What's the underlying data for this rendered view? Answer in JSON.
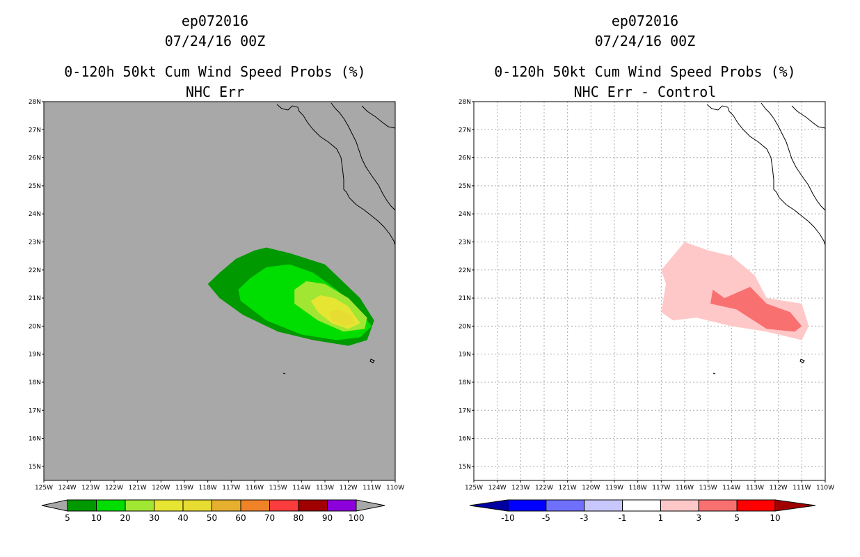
{
  "chart_data": [
    {
      "type": "contour-map",
      "title_lines": [
        "ep072016",
        "07/24/16 00Z",
        "0-120h 50kt Cum Wind Speed Probs (%)",
        "NHC Err"
      ],
      "x_ticks": [
        "125W",
        "124W",
        "123W",
        "122W",
        "121W",
        "120W",
        "119W",
        "118W",
        "117W",
        "116W",
        "115W",
        "114W",
        "113W",
        "112W",
        "111W",
        "110W"
      ],
      "y_ticks": [
        "28N",
        "27N",
        "26N",
        "25N",
        "24N",
        "23N",
        "22N",
        "21N",
        "20N",
        "19N",
        "18N",
        "17N",
        "16N",
        "15N"
      ],
      "lon_range": [
        -125,
        -110
      ],
      "lat_range": [
        14.5,
        28
      ],
      "background_color": "#a8a8a8",
      "grid": false,
      "colorbar": {
        "labels": [
          "5",
          "10",
          "20",
          "30",
          "40",
          "50",
          "60",
          "70",
          "80",
          "90",
          "100"
        ],
        "colors": [
          "#009900",
          "#00dd00",
          "#a0e632",
          "#e6e632",
          "#e6dc32",
          "#e6af2d",
          "#f08228",
          "#fa3c3c",
          "#a00000",
          "#8c00dc"
        ],
        "end_color": "#a8a8a8"
      },
      "contours": [
        {
          "level": "5-10",
          "color": "#009900",
          "points": [
            [
              -118.0,
              21.5
            ],
            [
              -117.5,
              21.9
            ],
            [
              -116.8,
              22.4
            ],
            [
              -116.0,
              22.7
            ],
            [
              -115.5,
              22.8
            ],
            [
              -114.5,
              22.6
            ],
            [
              -113.0,
              22.2
            ],
            [
              -112.5,
              21.8
            ],
            [
              -111.5,
              21.0
            ],
            [
              -110.9,
              20.2
            ],
            [
              -111.2,
              19.5
            ],
            [
              -112.0,
              19.3
            ],
            [
              -113.5,
              19.5
            ],
            [
              -115.0,
              19.8
            ],
            [
              -116.5,
              20.4
            ],
            [
              -117.5,
              21.0
            ]
          ]
        },
        {
          "level": "10-20",
          "color": "#00dd00",
          "points": [
            [
              -116.7,
              21.3
            ],
            [
              -116.2,
              21.7
            ],
            [
              -115.5,
              22.1
            ],
            [
              -114.5,
              22.2
            ],
            [
              -113.5,
              21.9
            ],
            [
              -112.5,
              21.3
            ],
            [
              -111.6,
              20.6
            ],
            [
              -111.0,
              20.0
            ],
            [
              -111.5,
              19.6
            ],
            [
              -112.5,
              19.5
            ],
            [
              -114.0,
              19.7
            ],
            [
              -115.5,
              20.2
            ],
            [
              -116.6,
              20.9
            ]
          ]
        },
        {
          "level": "20-30",
          "color": "#a0e632",
          "points": [
            [
              -114.3,
              21.3
            ],
            [
              -113.8,
              21.6
            ],
            [
              -113.0,
              21.5
            ],
            [
              -112.0,
              21.0
            ],
            [
              -111.2,
              20.3
            ],
            [
              -111.3,
              19.9
            ],
            [
              -112.2,
              19.8
            ],
            [
              -113.3,
              20.2
            ],
            [
              -114.3,
              20.8
            ]
          ]
        },
        {
          "level": "30-40",
          "color": "#e6e632",
          "points": [
            [
              -113.6,
              20.9
            ],
            [
              -113.2,
              21.1
            ],
            [
              -112.6,
              21.0
            ],
            [
              -112.0,
              20.7
            ],
            [
              -111.5,
              20.1
            ],
            [
              -112.0,
              19.9
            ],
            [
              -112.7,
              20.1
            ],
            [
              -113.3,
              20.5
            ]
          ]
        },
        {
          "level": "40-50",
          "color": "#e6dc32",
          "points": [
            [
              -112.8,
              20.5
            ],
            [
              -112.4,
              20.6
            ],
            [
              -111.9,
              20.4
            ],
            [
              -111.7,
              20.1
            ],
            [
              -112.2,
              20.0
            ],
            [
              -112.7,
              20.2
            ]
          ]
        }
      ]
    },
    {
      "type": "contour-map",
      "title_lines": [
        "ep072016",
        "07/24/16 00Z",
        "0-120h 50kt Cum Wind Speed Probs (%)",
        "NHC Err - Control"
      ],
      "x_ticks": [
        "125W",
        "124W",
        "123W",
        "122W",
        "121W",
        "120W",
        "119W",
        "118W",
        "117W",
        "116W",
        "115W",
        "114W",
        "113W",
        "112W",
        "111W",
        "110W"
      ],
      "y_ticks": [
        "28N",
        "27N",
        "26N",
        "25N",
        "24N",
        "23N",
        "22N",
        "21N",
        "20N",
        "19N",
        "18N",
        "17N",
        "16N",
        "15N"
      ],
      "lon_range": [
        -125,
        -110
      ],
      "lat_range": [
        14.5,
        28
      ],
      "background_color": "#ffffff",
      "grid": true,
      "colorbar": {
        "labels": [
          "-10",
          "-5",
          "-3",
          "-1",
          "1",
          "3",
          "5",
          "10"
        ],
        "colors": [
          "#0000a0",
          "#0000ff",
          "#7070ff",
          "#c8c8ff",
          "#ffffff",
          "#ffc8c8",
          "#f87070",
          "#ff0000",
          "#a00000"
        ]
      },
      "contours": [
        {
          "level": "1-3",
          "color": "#ffc8c8",
          "points": [
            [
              -117.0,
              22.0
            ],
            [
              -116.0,
              23.0
            ],
            [
              -115.0,
              22.7
            ],
            [
              -114.0,
              22.5
            ],
            [
              -113.0,
              21.8
            ],
            [
              -112.5,
              21.0
            ],
            [
              -111.0,
              20.8
            ],
            [
              -110.7,
              20.0
            ],
            [
              -111.0,
              19.5
            ],
            [
              -112.5,
              19.8
            ],
            [
              -114.0,
              20.0
            ],
            [
              -115.5,
              20.3
            ],
            [
              -116.5,
              20.2
            ],
            [
              -117.0,
              20.5
            ],
            [
              -116.8,
              21.5
            ]
          ]
        },
        {
          "level": "3-5",
          "color": "#f87070",
          "points": [
            [
              -114.8,
              21.3
            ],
            [
              -114.3,
              21.0
            ],
            [
              -113.2,
              21.4
            ],
            [
              -112.5,
              20.8
            ],
            [
              -111.5,
              20.5
            ],
            [
              -111.0,
              20.0
            ],
            [
              -111.3,
              19.8
            ],
            [
              -112.5,
              19.9
            ],
            [
              -113.8,
              20.6
            ],
            [
              -114.9,
              20.8
            ]
          ]
        }
      ]
    }
  ]
}
